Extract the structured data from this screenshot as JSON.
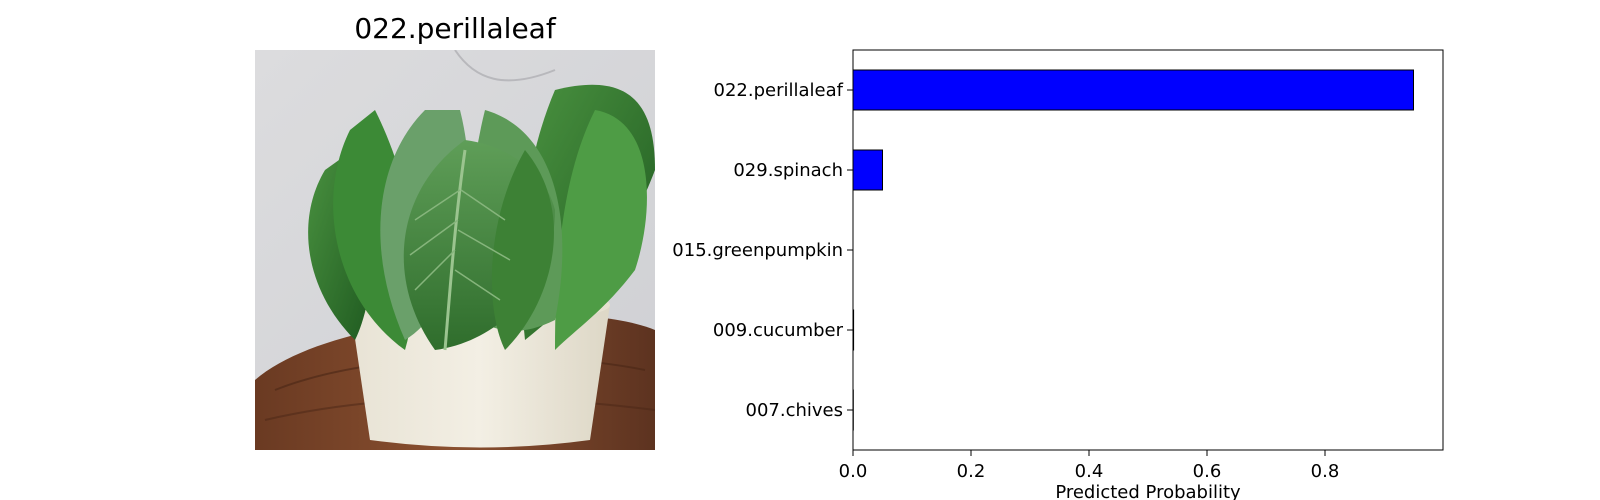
{
  "figure": {
    "image_title": "022.perillaleaf",
    "image_subject": "perilla leaves in a white pot on a wooden board"
  },
  "chart_data": {
    "type": "bar",
    "orientation": "horizontal",
    "categories": [
      "022.perillaleaf",
      "029.spinach",
      "015.greenpumpkin",
      "009.cucumber",
      "007.chives"
    ],
    "values": [
      0.95,
      0.05,
      0.0,
      0.001,
      0.0005
    ],
    "title": "",
    "xlabel": "Predicted Probability",
    "ylabel": "",
    "xlim": [
      0,
      1.0
    ],
    "xticks": [
      "0.0",
      "0.2",
      "0.4",
      "0.6",
      "0.8"
    ],
    "xtick_values": [
      0.0,
      0.2,
      0.4,
      0.6,
      0.8
    ],
    "bar_color": "#0000ff",
    "edge_color": "#000000",
    "grid": false
  }
}
